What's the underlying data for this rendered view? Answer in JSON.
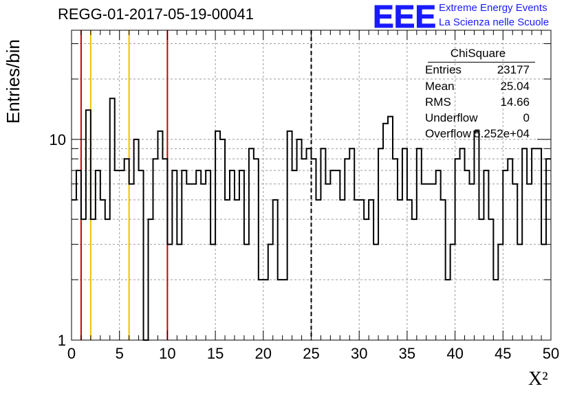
{
  "run_title": "REGG-01-2017-05-19-00041",
  "logo": {
    "letters": "EEE",
    "line1": "Extreme Energy Events",
    "line2": "La Scienza nelle Scuole",
    "color": "#1a1aff"
  },
  "stats_box": {
    "title": "ChiSquare",
    "rows": [
      {
        "key": "Entries",
        "value": "23177"
      },
      {
        "key": "Mean",
        "value": "25.04"
      },
      {
        "key": "RMS",
        "value": "14.66"
      },
      {
        "key": "Underflow",
        "value": "0"
      },
      {
        "key": "Overflow",
        "value": "5.252e+04"
      }
    ]
  },
  "chart_data": {
    "type": "histogram",
    "title": "REGG-01-2017-05-19-00041",
    "xlabel": "X²",
    "ylabel": "Entries/bin",
    "xlim": [
      0,
      50
    ],
    "ylim": [
      1,
      35
    ],
    "yscale": "log",
    "grid": true,
    "bin_width": 0.5,
    "x_ticks": [
      "0",
      "5",
      "10",
      "15",
      "20",
      "25",
      "30",
      "35",
      "40",
      "45",
      "50"
    ],
    "y_ticks": [
      "1",
      "10"
    ],
    "values": [
      5,
      7,
      4,
      14,
      4,
      7,
      5,
      4,
      16,
      7,
      7,
      8,
      6,
      10,
      7,
      1,
      4,
      8,
      11,
      8,
      3,
      7,
      3,
      7,
      6,
      6,
      7,
      6,
      7,
      3,
      11,
      10,
      5,
      7,
      5,
      7,
      3,
      9,
      8,
      2,
      2,
      3,
      5,
      2,
      2,
      11,
      7,
      10,
      8,
      9,
      8,
      5,
      9,
      6,
      7,
      7,
      5,
      8,
      9,
      5,
      5,
      4,
      5,
      3,
      9,
      12,
      13,
      8,
      5,
      9,
      5,
      4,
      9,
      6,
      6,
      6,
      7,
      5,
      2,
      3,
      8,
      9,
      7,
      6,
      11,
      4,
      7,
      4,
      2,
      3,
      7,
      8,
      6,
      3,
      9,
      6,
      9,
      9,
      3,
      8
    ],
    "vertical_lines": [
      {
        "x": 1,
        "color": "#d00000",
        "style": "solid"
      },
      {
        "x": 2,
        "color": "#f0c000",
        "style": "solid"
      },
      {
        "x": 6,
        "color": "#f0c000",
        "style": "solid"
      },
      {
        "x": 10,
        "color": "#d00000",
        "style": "solid"
      },
      {
        "x": 25,
        "color": "#000000",
        "style": "dashed"
      }
    ]
  }
}
